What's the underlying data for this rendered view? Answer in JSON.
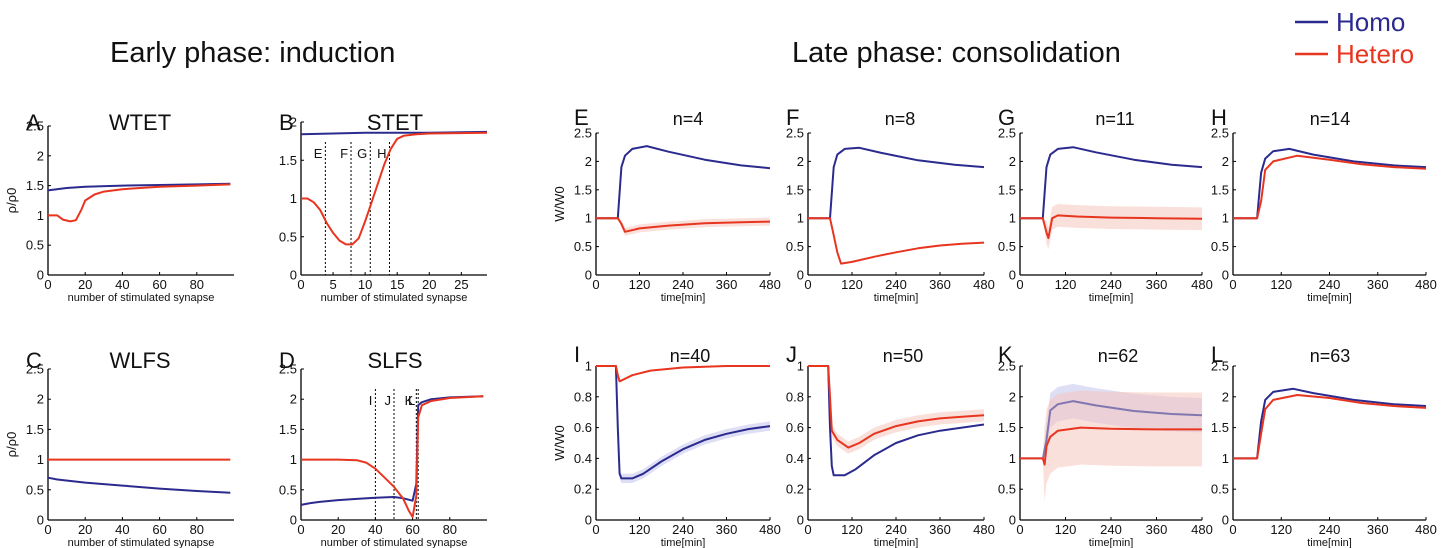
{
  "headings": {
    "early": "Early phase: induction",
    "late": "Late phase: consolidation"
  },
  "legend": {
    "position": "top-right",
    "items": [
      {
        "label": "Homo",
        "color": "#2b2b8f"
      },
      {
        "label": "Hetero",
        "color": "#e8351f"
      }
    ]
  },
  "colors": {
    "homo": "#2b2b8f",
    "hetero": "#e8351f",
    "hetero_band": "#f6c6bd",
    "homo_band": "#c8c8ee",
    "axis": "#000000"
  },
  "chart_data": [
    {
      "id": "A",
      "letter": "A",
      "title": "WTET",
      "type": "line",
      "xlabel": "number of stimulated synapse",
      "ylabel": "ρ/ρ0",
      "xlim": [
        0,
        100
      ],
      "ylim": [
        0,
        2.5
      ],
      "xticks": [
        0,
        20,
        40,
        60,
        80
      ],
      "yticks": [
        0,
        0.5,
        1,
        1.5,
        2,
        2.5
      ],
      "ytick_labels": [
        "0",
        "0.5",
        "1",
        "1.5",
        "2",
        "2.5"
      ],
      "series": [
        {
          "key": "homo",
          "x": [
            0,
            10,
            20,
            40,
            60,
            80,
            98
          ],
          "y": [
            1.42,
            1.46,
            1.48,
            1.5,
            1.51,
            1.52,
            1.53
          ]
        },
        {
          "key": "hetero",
          "x": [
            0,
            5,
            8,
            12,
            15,
            18,
            20,
            25,
            30,
            40,
            60,
            80,
            98
          ],
          "y": [
            1.0,
            1.0,
            0.93,
            0.9,
            0.92,
            1.1,
            1.25,
            1.35,
            1.4,
            1.44,
            1.48,
            1.5,
            1.52
          ]
        }
      ]
    },
    {
      "id": "B",
      "letter": "B",
      "title": "STET",
      "type": "line",
      "xlabel": "number of stimulated synapse",
      "ylabel": "",
      "xlim": [
        0,
        29
      ],
      "ylim": [
        0,
        2
      ],
      "xticks": [
        0,
        5,
        10,
        15,
        20,
        25
      ],
      "yticks": [
        0,
        0.5,
        1,
        1.5,
        2
      ],
      "ytick_labels": [
        "0",
        "0.5",
        "1",
        "1.5",
        "2"
      ],
      "markers": [
        {
          "x": 3.8,
          "label": "E"
        },
        {
          "x": 7.8,
          "label": "F"
        },
        {
          "x": 10.8,
          "label": "G"
        },
        {
          "x": 13.8,
          "label": "H"
        }
      ],
      "series": [
        {
          "key": "homo",
          "x": [
            0,
            5,
            10,
            15,
            20,
            29
          ],
          "y": [
            1.84,
            1.85,
            1.86,
            1.86,
            1.86,
            1.87
          ]
        },
        {
          "key": "hetero",
          "x": [
            0,
            1,
            2,
            3,
            4,
            5,
            6,
            7,
            8,
            9,
            10,
            11,
            12,
            13,
            14,
            15,
            16,
            18,
            20,
            29
          ],
          "y": [
            1.0,
            1.0,
            0.95,
            0.85,
            0.68,
            0.55,
            0.45,
            0.4,
            0.4,
            0.48,
            0.7,
            0.95,
            1.2,
            1.45,
            1.65,
            1.78,
            1.82,
            1.84,
            1.85,
            1.86
          ]
        }
      ]
    },
    {
      "id": "C",
      "letter": "C",
      "title": "WLFS",
      "type": "line",
      "xlabel": "number of stimulated synapse",
      "ylabel": "ρ/ρ0",
      "xlim": [
        0,
        100
      ],
      "ylim": [
        0,
        2.5
      ],
      "xticks": [
        0,
        20,
        40,
        60,
        80
      ],
      "yticks": [
        0,
        0.5,
        1,
        1.5,
        2,
        2.5
      ],
      "ytick_labels": [
        "0",
        "0.5",
        "1",
        "1.5",
        "2",
        "2.5"
      ],
      "series": [
        {
          "key": "homo",
          "x": [
            0,
            5,
            20,
            40,
            60,
            80,
            98
          ],
          "y": [
            0.7,
            0.67,
            0.62,
            0.57,
            0.52,
            0.48,
            0.45
          ]
        },
        {
          "key": "hetero",
          "x": [
            0,
            98
          ],
          "y": [
            1.0,
            1.0
          ]
        }
      ]
    },
    {
      "id": "D",
      "letter": "D",
      "title": "SLFS",
      "type": "line",
      "xlabel": "number of stimulated synapse",
      "ylabel": "",
      "xlim": [
        0,
        100
      ],
      "ylim": [
        0,
        2.5
      ],
      "xticks": [
        0,
        20,
        40,
        60,
        80
      ],
      "yticks": [
        0,
        0.5,
        1,
        1.5,
        2,
        2.5
      ],
      "ytick_labels": [
        "0",
        "0.5",
        "1",
        "1.5",
        "2",
        "2.5"
      ],
      "markers": [
        {
          "x": 40,
          "label": "I"
        },
        {
          "x": 50,
          "label": "J"
        },
        {
          "x": 62,
          "label": "K"
        },
        {
          "x": 63,
          "label": "L"
        }
      ],
      "series": [
        {
          "key": "homo",
          "x": [
            0,
            5,
            10,
            20,
            30,
            40,
            50,
            55,
            60,
            62,
            63,
            65,
            70,
            80,
            98
          ],
          "y": [
            0.25,
            0.28,
            0.3,
            0.33,
            0.35,
            0.37,
            0.38,
            0.36,
            0.32,
            0.6,
            1.9,
            1.95,
            2.0,
            2.03,
            2.05
          ]
        },
        {
          "key": "hetero",
          "x": [
            0,
            10,
            20,
            30,
            35,
            40,
            45,
            50,
            55,
            58,
            60,
            62,
            63,
            65,
            70,
            80,
            98
          ],
          "y": [
            1.0,
            1.0,
            1.0,
            0.99,
            0.95,
            0.85,
            0.7,
            0.55,
            0.35,
            0.15,
            0.05,
            0.4,
            1.7,
            1.9,
            1.97,
            2.02,
            2.05
          ]
        }
      ]
    },
    {
      "id": "E",
      "letter": "E",
      "title": "n=4",
      "type": "line",
      "xlabel": "time[min]",
      "ylabel": "W/W0",
      "xlim": [
        0,
        480
      ],
      "ylim": [
        0,
        2.5
      ],
      "xticks": [
        0,
        120,
        240,
        360,
        480
      ],
      "yticks": [
        0,
        0.5,
        1,
        1.5,
        2,
        2.5
      ],
      "ytick_labels": [
        "0",
        "0.5",
        "1",
        "1.5",
        "2",
        "2.5"
      ],
      "series": [
        {
          "key": "homo",
          "x": [
            0,
            60,
            70,
            80,
            100,
            140,
            200,
            300,
            400,
            480
          ],
          "y": [
            1.0,
            1.0,
            1.9,
            2.1,
            2.22,
            2.27,
            2.17,
            2.03,
            1.93,
            1.88
          ]
        },
        {
          "key": "hetero",
          "x": [
            0,
            60,
            70,
            80,
            120,
            200,
            300,
            400,
            480
          ],
          "y": [
            1.0,
            1.0,
            0.9,
            0.76,
            0.82,
            0.87,
            0.91,
            0.93,
            0.94
          ],
          "band": 0.07
        }
      ]
    },
    {
      "id": "F",
      "letter": "F",
      "title": "n=8",
      "type": "line",
      "xlabel": "time[min]",
      "ylabel": "",
      "xlim": [
        0,
        480
      ],
      "ylim": [
        0,
        2.5
      ],
      "xticks": [
        0,
        120,
        240,
        360,
        480
      ],
      "yticks": [
        0,
        0.5,
        1,
        1.5,
        2,
        2.5
      ],
      "ytick_labels": [
        "0",
        "0.5",
        "1",
        "1.5",
        "2",
        "2.5"
      ],
      "series": [
        {
          "key": "homo",
          "x": [
            0,
            60,
            70,
            80,
            100,
            140,
            200,
            300,
            400,
            480
          ],
          "y": [
            1.0,
            1.0,
            1.9,
            2.12,
            2.22,
            2.24,
            2.15,
            2.02,
            1.94,
            1.9
          ]
        },
        {
          "key": "hetero",
          "x": [
            0,
            60,
            70,
            80,
            90,
            120,
            180,
            240,
            300,
            360,
            420,
            480
          ],
          "y": [
            1.0,
            1.0,
            0.7,
            0.4,
            0.2,
            0.23,
            0.32,
            0.4,
            0.47,
            0.52,
            0.55,
            0.57
          ]
        }
      ]
    },
    {
      "id": "G",
      "letter": "G",
      "title": "n=11",
      "type": "line",
      "xlabel": "time[min]",
      "ylabel": "",
      "xlim": [
        0,
        480
      ],
      "ylim": [
        0,
        2.5
      ],
      "xticks": [
        0,
        120,
        240,
        360,
        480
      ],
      "yticks": [
        0,
        0.5,
        1,
        1.5,
        2,
        2.5
      ],
      "ytick_labels": [
        "0",
        "0.5",
        "1",
        "1.5",
        "2",
        "2.5"
      ],
      "series": [
        {
          "key": "homo",
          "x": [
            0,
            60,
            70,
            80,
            100,
            140,
            200,
            300,
            400,
            480
          ],
          "y": [
            1.0,
            1.0,
            1.9,
            2.12,
            2.22,
            2.25,
            2.16,
            2.03,
            1.94,
            1.9
          ]
        },
        {
          "key": "hetero",
          "x": [
            0,
            60,
            70,
            75,
            85,
            100,
            150,
            240,
            360,
            480
          ],
          "y": [
            1.0,
            1.0,
            0.75,
            0.65,
            1.0,
            1.05,
            1.03,
            1.01,
            1.0,
            0.99
          ],
          "band": 0.2
        }
      ]
    },
    {
      "id": "H",
      "letter": "H",
      "title": "n=14",
      "type": "line",
      "xlabel": "time[min]",
      "ylabel": "",
      "xlim": [
        0,
        480
      ],
      "ylim": [
        0,
        2.5
      ],
      "xticks": [
        0,
        120,
        240,
        360,
        480
      ],
      "yticks": [
        0,
        0.5,
        1,
        1.5,
        2,
        2.5
      ],
      "ytick_labels": [
        "0",
        "0.5",
        "1",
        "1.5",
        "2",
        "2.5"
      ],
      "series": [
        {
          "key": "homo",
          "x": [
            0,
            60,
            70,
            80,
            100,
            140,
            200,
            300,
            400,
            480
          ],
          "y": [
            1.0,
            1.0,
            1.8,
            2.05,
            2.18,
            2.22,
            2.12,
            2.0,
            1.93,
            1.9
          ]
        },
        {
          "key": "hetero",
          "x": [
            0,
            60,
            70,
            80,
            100,
            160,
            240,
            320,
            400,
            480
          ],
          "y": [
            1.0,
            1.0,
            1.3,
            1.85,
            2.0,
            2.1,
            2.03,
            1.95,
            1.9,
            1.87
          ]
        }
      ]
    },
    {
      "id": "I",
      "letter": "I",
      "title": "n=40",
      "type": "line",
      "xlabel": "time[min]",
      "ylabel": "W/W0",
      "xlim": [
        0,
        480
      ],
      "ylim": [
        0,
        1
      ],
      "xticks": [
        0,
        120,
        240,
        360,
        480
      ],
      "yticks": [
        0,
        0.2,
        0.4,
        0.6,
        0.8,
        1
      ],
      "ytick_labels": [
        "0",
        "0.2",
        "0.4",
        "0.6",
        "0.8",
        "1"
      ],
      "series": [
        {
          "key": "homo",
          "x": [
            0,
            55,
            60,
            65,
            70,
            100,
            130,
            180,
            240,
            300,
            360,
            420,
            480
          ],
          "y": [
            1.0,
            1.0,
            0.6,
            0.3,
            0.27,
            0.27,
            0.3,
            0.38,
            0.46,
            0.52,
            0.56,
            0.59,
            0.61
          ],
          "band": 0.03
        },
        {
          "key": "hetero",
          "x": [
            0,
            55,
            60,
            65,
            100,
            150,
            240,
            360,
            480
          ],
          "y": [
            1.0,
            1.0,
            0.94,
            0.9,
            0.94,
            0.97,
            0.99,
            1.0,
            1.0
          ]
        }
      ]
    },
    {
      "id": "J",
      "letter": "J",
      "title": "n=50",
      "type": "line",
      "xlabel": "time[min]",
      "ylabel": "",
      "xlim": [
        0,
        480
      ],
      "ylim": [
        0,
        1
      ],
      "xticks": [
        0,
        120,
        240,
        360,
        480
      ],
      "yticks": [
        0,
        0.2,
        0.4,
        0.6,
        0.8,
        1
      ],
      "ytick_labels": [
        "0",
        "0.2",
        "0.4",
        "0.6",
        "0.8",
        "1"
      ],
      "series": [
        {
          "key": "homo",
          "x": [
            0,
            55,
            60,
            65,
            70,
            100,
            130,
            180,
            240,
            300,
            360,
            420,
            480
          ],
          "y": [
            1.0,
            1.0,
            0.6,
            0.35,
            0.29,
            0.29,
            0.33,
            0.42,
            0.5,
            0.55,
            0.58,
            0.6,
            0.62
          ]
        },
        {
          "key": "hetero",
          "x": [
            0,
            55,
            60,
            65,
            80,
            110,
            140,
            180,
            240,
            300,
            360,
            420,
            480
          ],
          "y": [
            1.0,
            1.0,
            0.8,
            0.58,
            0.52,
            0.47,
            0.5,
            0.56,
            0.61,
            0.64,
            0.66,
            0.67,
            0.68
          ],
          "band": 0.04
        }
      ]
    },
    {
      "id": "K",
      "letter": "K",
      "title": "n=62",
      "type": "line",
      "xlabel": "time[min]",
      "ylabel": "",
      "xlim": [
        0,
        480
      ],
      "ylim": [
        0,
        2.5
      ],
      "xticks": [
        0,
        120,
        240,
        360,
        480
      ],
      "yticks": [
        0,
        0.5,
        1,
        1.5,
        2,
        2.5
      ],
      "ytick_labels": [
        "0",
        "0.5",
        "1",
        "1.5",
        "2",
        "2.5"
      ],
      "series": [
        {
          "key": "homo",
          "x": [
            0,
            60,
            70,
            80,
            100,
            140,
            200,
            300,
            400,
            480
          ],
          "y": [
            1.0,
            1.0,
            1.3,
            1.78,
            1.88,
            1.93,
            1.86,
            1.77,
            1.72,
            1.7
          ],
          "band": 0.28,
          "faded": true
        },
        {
          "key": "hetero",
          "x": [
            0,
            60,
            65,
            70,
            80,
            100,
            160,
            240,
            360,
            480
          ],
          "y": [
            1.0,
            1.0,
            0.9,
            1.2,
            1.35,
            1.45,
            1.5,
            1.48,
            1.47,
            1.47
          ],
          "band": 0.6
        }
      ]
    },
    {
      "id": "L",
      "letter": "L",
      "title": "n=63",
      "type": "line",
      "xlabel": "time[min]",
      "ylabel": "",
      "xlim": [
        0,
        480
      ],
      "ylim": [
        0,
        2.5
      ],
      "xticks": [
        0,
        120,
        240,
        360,
        480
      ],
      "yticks": [
        0,
        0.5,
        1,
        1.5,
        2,
        2.5
      ],
      "ytick_labels": [
        "0",
        "0.5",
        "1",
        "1.5",
        "2",
        "2.5"
      ],
      "series": [
        {
          "key": "homo",
          "x": [
            0,
            60,
            70,
            80,
            100,
            150,
            200,
            300,
            400,
            480
          ],
          "y": [
            1.0,
            1.0,
            1.6,
            1.95,
            2.08,
            2.13,
            2.06,
            1.95,
            1.88,
            1.85
          ]
        },
        {
          "key": "hetero",
          "x": [
            0,
            60,
            70,
            80,
            100,
            160,
            240,
            320,
            400,
            480
          ],
          "y": [
            1.0,
            1.0,
            1.4,
            1.8,
            1.95,
            2.03,
            1.98,
            1.9,
            1.85,
            1.82
          ]
        }
      ]
    }
  ]
}
